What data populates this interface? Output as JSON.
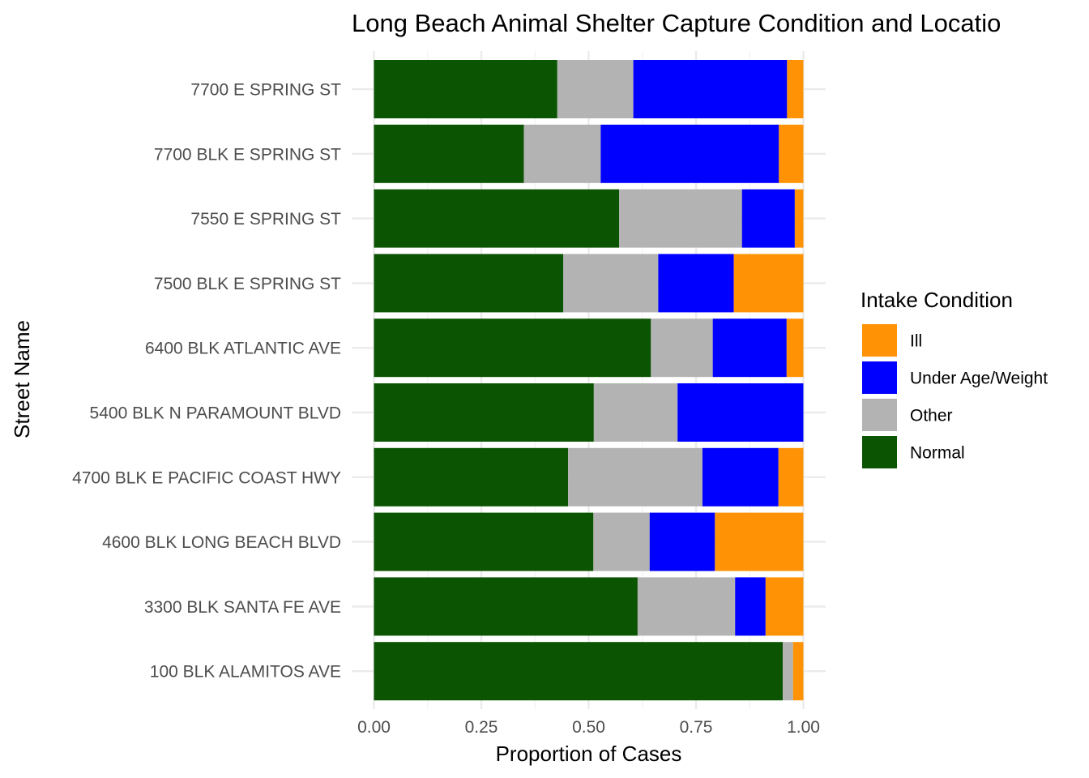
{
  "chart_data": {
    "type": "bar",
    "orientation": "horizontal",
    "stacked": true,
    "title": "Long Beach Animal Shelter Capture Condition and Locatio",
    "xlabel": "Proportion of Cases",
    "ylabel": "Street Name",
    "xlim": [
      0,
      1
    ],
    "x_ticks": [
      0,
      0.25,
      0.5,
      0.75,
      1
    ],
    "x_tick_labels": [
      "0.00",
      "0.25",
      "0.50",
      "0.75",
      "1.00"
    ],
    "grid": true,
    "legend": {
      "title": "Intake Condition",
      "position": "right",
      "items": [
        "Ill",
        "Under Age/Weight",
        "Other",
        "Normal"
      ]
    },
    "categories": [
      "7700 E SPRING ST",
      "7700 BLK E SPRING ST",
      "7550 E SPRING ST",
      "7500 BLK E SPRING ST",
      "6400 BLK ATLANTIC AVE",
      "5400 BLK N PARAMOUNT BLVD",
      "4700 BLK E PACIFIC COAST HWY",
      "4600 BLK LONG BEACH BLVD",
      "3300 BLK SANTA FE AVE",
      "100 BLK ALAMITOS AVE"
    ],
    "series": [
      {
        "name": "Normal",
        "color": "#0b5401",
        "values": [
          0.427,
          0.349,
          0.571,
          0.441,
          0.645,
          0.512,
          0.452,
          0.511,
          0.614,
          0.952
        ]
      },
      {
        "name": "Other",
        "color": "#b3b3b3",
        "values": [
          0.177,
          0.179,
          0.286,
          0.221,
          0.144,
          0.195,
          0.313,
          0.131,
          0.227,
          0.024
        ]
      },
      {
        "name": "Under Age/Weight",
        "color": "#0000ff",
        "values": [
          0.358,
          0.415,
          0.123,
          0.176,
          0.172,
          0.293,
          0.177,
          0.152,
          0.071,
          0.0
        ]
      },
      {
        "name": "Ill",
        "color": "#ff9305",
        "values": [
          0.038,
          0.057,
          0.02,
          0.162,
          0.039,
          0.0,
          0.058,
          0.206,
          0.088,
          0.024
        ]
      }
    ]
  }
}
